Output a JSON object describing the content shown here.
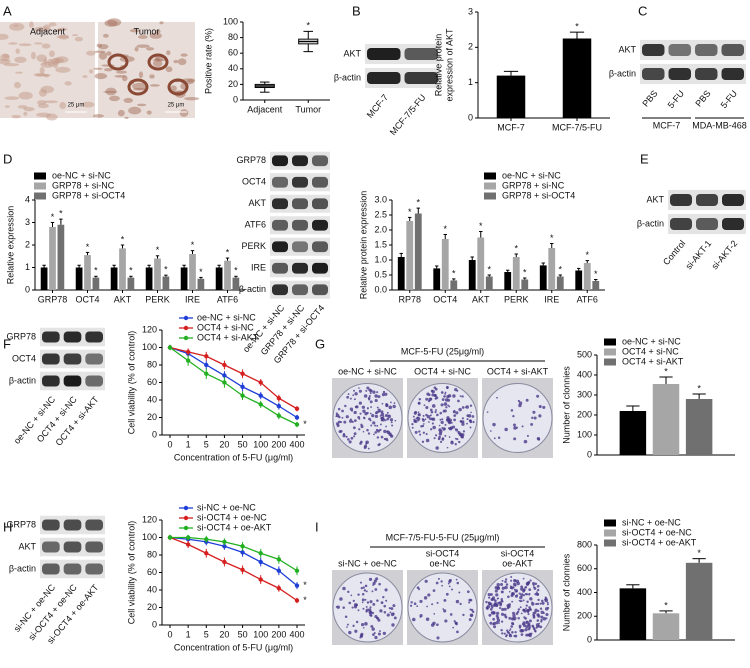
{
  "panel_labels": [
    "A",
    "B",
    "C",
    "D",
    "E",
    "F",
    "G",
    "H",
    "I"
  ],
  "micrographs": {
    "labels": [
      "Adjacent",
      "Tumor"
    ],
    "scale": "25 μm"
  },
  "dishes": [
    {
      "header": "MCF-5-FU (25μg/ml)",
      "labels": [
        [
          "oe-NC + si-NC"
        ],
        [
          "OCT4 + si-NC"
        ],
        [
          "OCT4 + si-AKT"
        ]
      ]
    },
    {
      "header": "MCF-7/5-FU-5-FU (25μg/ml)",
      "labels": [
        [
          "si-NC + oe-NC"
        ],
        [
          "si-OCT4",
          "oe-NC"
        ],
        [
          "si-OCT4",
          "oe-AKT"
        ]
      ]
    }
  ],
  "blots": [
    {
      "rows": [
        "AKT",
        "β-actin"
      ],
      "lanes": [
        "MCF-7",
        "MCF-7/5-FU"
      ]
    },
    {
      "rows": [
        "AKT",
        "β-actin"
      ],
      "lanes": [
        "PBS",
        "5-FU",
        "PBS",
        "5-FU"
      ],
      "groups": [
        "MCF-7",
        "MDA-MB-468"
      ]
    },
    {
      "rows": [
        "GRP78",
        "OCT4",
        "AKT",
        "ATF6",
        "PERK",
        "IRE",
        "β-actin"
      ],
      "lanes": [
        "oe-NC + si-NC",
        "GRP78 + si-NC",
        "GRP78 + si-OCT4"
      ]
    },
    {
      "rows": [
        "AKT",
        "β-actin"
      ],
      "lanes": [
        "Control",
        "si-AKT-1",
        "si-AKT-2"
      ]
    },
    {
      "rows": [
        "GRP78",
        "OCT4",
        "β-actin"
      ],
      "lanes": [
        "oe-NC + si-NC",
        "OCT4 + si-NC",
        "OCT4 + si-AKT"
      ]
    },
    {
      "rows": [
        "GRP78",
        "AKT",
        "β-actin"
      ],
      "lanes": [
        "si-NC + oe-NC",
        "si-OCT4 + oe-NC",
        "si-OCT4 + oe-AKT"
      ]
    }
  ],
  "chart_data": [
    {
      "type": "box",
      "y_label": [
        "Positive rate (%)"
      ],
      "categories": [
        "Adjacent",
        "Tumor"
      ],
      "boxes": [
        {
          "min": 10,
          "q1": 16,
          "median": 18,
          "q3": 20,
          "max": 23
        },
        {
          "min": 62,
          "q1": 72,
          "median": 75,
          "q3": 78,
          "max": 88
        }
      ],
      "markers": [
        null,
        "*"
      ],
      "ylim": [
        0,
        100
      ],
      "yticks": [
        0,
        20,
        40,
        60,
        80,
        100
      ],
      "color": "#000000"
    },
    {
      "type": "bar",
      "y_label": [
        "Relative protein",
        "expression of AKT"
      ],
      "categories": [
        "MCF-7",
        "MCF-7/5-FU"
      ],
      "values": [
        1.2,
        2.25
      ],
      "errors": [
        0.12,
        0.18
      ],
      "markers": [
        null,
        "*"
      ],
      "color": "#000000",
      "ylim": [
        0,
        3
      ],
      "yticks": [
        0,
        1,
        2,
        3
      ]
    },
    {
      "type": "bar",
      "y_label": [
        "Relative expression"
      ],
      "categories": [
        "GRP78",
        "OCT4",
        "AKT",
        "PERK",
        "IRE",
        "ATF6"
      ],
      "series": [
        {
          "name": "oe-NC + si-NC",
          "color": "#000000",
          "values": [
            1,
            1,
            1,
            1,
            1,
            1
          ],
          "errors": [
            0.1,
            0.1,
            0.1,
            0.1,
            0.1,
            0.1
          ],
          "markers": [
            null,
            null,
            null,
            null,
            null,
            null
          ]
        },
        {
          "name": "GRP78 + si-NC",
          "color": "#a6a6a6",
          "values": [
            2.8,
            1.55,
            1.85,
            1.4,
            1.6,
            1.3
          ],
          "errors": [
            0.2,
            0.12,
            0.15,
            0.12,
            0.15,
            0.12
          ],
          "markers": [
            "*",
            "*",
            "*",
            "*",
            "*",
            "*"
          ]
        },
        {
          "name": "GRP78 + si-OCT4",
          "color": "#707070",
          "values": [
            2.9,
            0.55,
            0.55,
            0.6,
            0.5,
            0.55
          ],
          "errors": [
            0.25,
            0.06,
            0.06,
            0.06,
            0.06,
            0.06
          ],
          "markers": [
            "*",
            "*",
            "*",
            "*",
            "*",
            "*"
          ]
        }
      ],
      "ylim": [
        0,
        4
      ],
      "yticks": [
        0,
        1,
        2,
        3,
        4
      ]
    },
    {
      "type": "bar",
      "y_label": [
        "Relative protein expression"
      ],
      "categories": [
        "RP78",
        "OCT4",
        "AKT",
        "PERK",
        "IRE",
        "ATF6"
      ],
      "series": [
        {
          "name": "oe-NC + si-NC",
          "color": "#000000",
          "values": [
            1.1,
            0.72,
            1.0,
            0.6,
            0.82,
            0.65
          ],
          "errors": [
            0.12,
            0.08,
            0.1,
            0.06,
            0.08,
            0.07
          ],
          "markers": [
            null,
            null,
            null,
            null,
            null,
            null
          ]
        },
        {
          "name": "GRP78 + si-NC",
          "color": "#a6a6a6",
          "values": [
            2.3,
            1.7,
            1.75,
            1.1,
            1.4,
            0.9
          ],
          "errors": [
            0.12,
            0.15,
            0.2,
            0.1,
            0.15,
            0.08
          ],
          "markers": [
            "*",
            "*",
            "*",
            "*",
            "*",
            "*"
          ]
        },
        {
          "name": "GRP78 + si-OCT4",
          "color": "#707070",
          "values": [
            2.55,
            0.32,
            0.45,
            0.35,
            0.45,
            0.3
          ],
          "errors": [
            0.18,
            0.05,
            0.05,
            0.05,
            0.05,
            0.05
          ],
          "markers": [
            "*",
            "*",
            "*",
            "*",
            "*",
            "*"
          ]
        }
      ],
      "ylim": [
        0,
        3
      ],
      "yticks": [
        {
          "value": 0,
          "label": "0.0"
        },
        0.5,
        {
          "value": 1,
          "label": "1.0"
        },
        1.5,
        {
          "value": 2,
          "label": "2.0"
        },
        2.5,
        {
          "value": 3,
          "label": "3.0"
        }
      ]
    },
    {
      "type": "line",
      "y_label": [
        "Cell viability (% of control)"
      ],
      "x_label": "Concentration of 5-FU (μg/ml)",
      "categories": [
        "0",
        "1",
        "5",
        "20",
        "50",
        "100",
        "200",
        "400"
      ],
      "series": [
        {
          "name": "oe-NC + si-NC",
          "color": "#1f3fd6",
          "values": [
            100,
            93,
            80,
            68,
            55,
            45,
            33,
            20
          ],
          "errors": [
            3,
            4,
            5,
            5,
            5,
            4,
            4,
            3
          ],
          "markers": [
            null,
            null,
            null,
            null,
            null,
            null,
            null,
            null
          ]
        },
        {
          "name": "OCT4 + si-NC",
          "color": "#d62020",
          "values": [
            100,
            95,
            90,
            80,
            70,
            60,
            42,
            30
          ],
          "errors": [
            3,
            4,
            5,
            5,
            5,
            4,
            4,
            3
          ],
          "markers": [
            null,
            null,
            null,
            null,
            null,
            null,
            null,
            null
          ]
        },
        {
          "name": "OCT4 + si-AKT",
          "color": "#22b022",
          "values": [
            100,
            85,
            70,
            60,
            45,
            35,
            22,
            12
          ],
          "errors": [
            3,
            6,
            6,
            6,
            5,
            4,
            4,
            3
          ],
          "markers": [
            null,
            null,
            null,
            null,
            null,
            null,
            null,
            "*"
          ]
        }
      ],
      "ylim": [
        0,
        120
      ],
      "yticks": [
        0,
        20,
        40,
        60,
        80,
        100,
        120
      ]
    },
    {
      "type": "bar",
      "y_label": [
        "Number of clonnies"
      ],
      "categories": [
        null
      ],
      "series": [
        {
          "name": "oe-NC + si-NC",
          "color": "#000000",
          "values": [
            220
          ],
          "errors": [
            25
          ],
          "markers": [
            null
          ]
        },
        {
          "name": "OCT4 + si-NC",
          "color": "#a6a6a6",
          "values": [
            355
          ],
          "errors": [
            35
          ],
          "markers": [
            "*"
          ]
        },
        {
          "name": "OCT4 + si-AKT",
          "color": "#707070",
          "values": [
            280
          ],
          "errors": [
            25
          ],
          "markers": [
            "*"
          ]
        }
      ],
      "ylim": [
        0,
        500
      ],
      "yticks": [
        0,
        100,
        200,
        300,
        400,
        500
      ]
    },
    {
      "type": "line",
      "y_label": [
        "Cell viability (% of control)"
      ],
      "x_label": "Concentration of 5-FU (μg/ml)",
      "categories": [
        "0",
        "1",
        "5",
        "20",
        "50",
        "100",
        "200",
        "400"
      ],
      "series": [
        {
          "name": "si-NC + oe-NC",
          "color": "#1f3fd6",
          "values": [
            100,
            98,
            95,
            90,
            83,
            72,
            62,
            45
          ],
          "errors": [
            3,
            3,
            4,
            4,
            5,
            5,
            5,
            4
          ],
          "markers": [
            null,
            null,
            null,
            null,
            null,
            null,
            null,
            "*"
          ]
        },
        {
          "name": "si-OCT4 + oe-NC",
          "color": "#d62020",
          "values": [
            100,
            92,
            82,
            72,
            63,
            52,
            42,
            28
          ],
          "errors": [
            3,
            4,
            5,
            5,
            5,
            5,
            4,
            3
          ],
          "markers": [
            null,
            null,
            null,
            null,
            null,
            null,
            null,
            "*"
          ]
        },
        {
          "name": "si-OCT4 + oe-AKT",
          "color": "#22b022",
          "values": [
            100,
            100,
            98,
            95,
            90,
            82,
            75,
            62
          ],
          "errors": [
            3,
            3,
            4,
            4,
            5,
            5,
            5,
            5
          ],
          "markers": [
            null,
            null,
            null,
            null,
            null,
            null,
            null,
            null
          ]
        }
      ],
      "ylim": [
        0,
        120
      ],
      "yticks": [
        0,
        20,
        40,
        60,
        80,
        100,
        120
      ]
    },
    {
      "type": "bar",
      "y_label": [
        "Number of clonnies"
      ],
      "categories": [
        null
      ],
      "series": [
        {
          "name": "si-NC + oe-NC",
          "color": "#000000",
          "values": [
            435
          ],
          "errors": [
            30
          ],
          "markers": [
            null
          ]
        },
        {
          "name": "si-OCT4 + oe-NC",
          "color": "#a6a6a6",
          "values": [
            225
          ],
          "errors": [
            20
          ],
          "markers": [
            "*"
          ]
        },
        {
          "name": "si-OCT4 + oe-AKT",
          "color": "#707070",
          "values": [
            650
          ],
          "errors": [
            35
          ],
          "markers": [
            "*"
          ]
        }
      ],
      "ylim": [
        0,
        800
      ],
      "yticks": [
        0,
        200,
        400,
        600,
        800
      ]
    }
  ]
}
